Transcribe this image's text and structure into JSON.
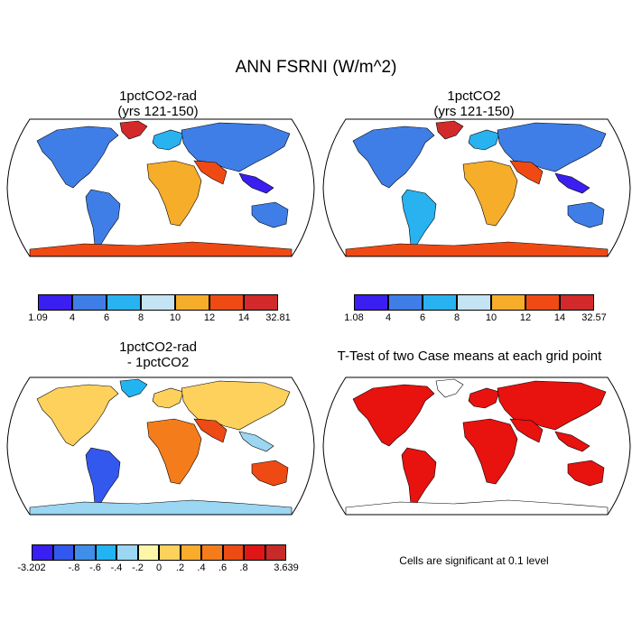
{
  "figure": {
    "title": "ANN FSRNI (W/m^2)"
  },
  "panels": [
    {
      "id": "p1",
      "title_line1": "1pctCO2-rad",
      "title_line2": "(yrs 121-150)",
      "colorbar": {
        "colors": [
          "#3b1ff0",
          "#3f7ee6",
          "#28b2f0",
          "#c4e4f4",
          "#f6ad2a",
          "#f04a14",
          "#d22a2a"
        ],
        "labels": [
          "1.09",
          "4",
          "6",
          "8",
          "10",
          "12",
          "14",
          "32.81"
        ]
      }
    },
    {
      "id": "p2",
      "title_line1": "1pctCO2",
      "title_line2": "(yrs 121-150)",
      "colorbar": {
        "colors": [
          "#3b1ff0",
          "#3f7ee6",
          "#28b2f0",
          "#c4e4f4",
          "#f6ad2a",
          "#f04a14",
          "#d22a2a"
        ],
        "labels": [
          "1.08",
          "4",
          "6",
          "8",
          "10",
          "12",
          "14",
          "32.57"
        ]
      }
    },
    {
      "id": "p3",
      "title_line1": "1pctCO2-rad",
      "title_line2": "- 1pctCO2",
      "colorbar": {
        "colors": [
          "#3a1ff2",
          "#3358ee",
          "#3f8ee8",
          "#22b4f2",
          "#9bd6f2",
          "#fdf6a8",
          "#fdd15c",
          "#f9ab2c",
          "#f47c1b",
          "#ee4a14",
          "#e01616",
          "#c82a2a"
        ],
        "labels": [
          "-3.202",
          "",
          "-.8",
          "-.6",
          "-.4",
          "-.2",
          "0",
          ".2",
          ".4",
          ".6",
          ".8",
          "",
          "3.639"
        ]
      }
    },
    {
      "id": "p4",
      "title_line1": "T-Test of two Case means at each grid point",
      "note": "Cells are significant at 0.1 level",
      "significant_color": "#e8120f"
    }
  ]
}
